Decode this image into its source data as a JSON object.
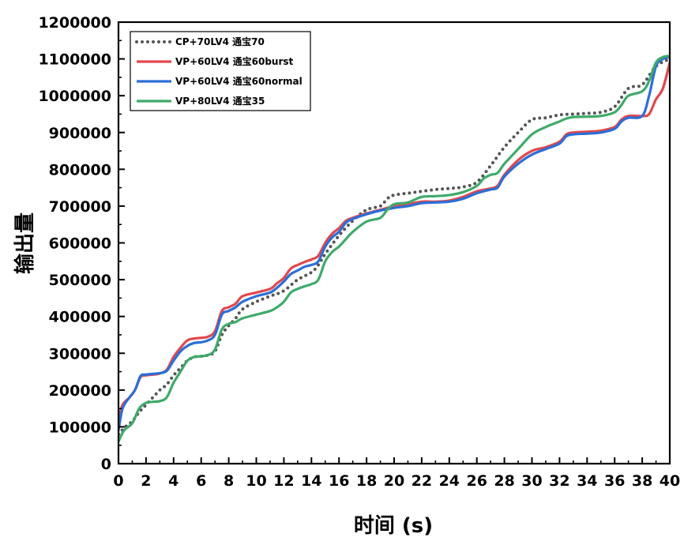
{
  "chart_data": {
    "type": "line",
    "title": "",
    "xlabel": "时间 (s)",
    "ylabel": "输出量",
    "xlim": [
      0,
      40
    ],
    "ylim": [
      0,
      1200000
    ],
    "x_ticks": [
      "0",
      "2",
      "4",
      "6",
      "8",
      "10",
      "12",
      "14",
      "16",
      "18",
      "20",
      "22",
      "24",
      "26",
      "28",
      "30",
      "32",
      "34",
      "36",
      "38",
      "40"
    ],
    "y_ticks": [
      "0",
      "100000",
      "200000",
      "300000",
      "400000",
      "500000",
      "600000",
      "700000",
      "800000",
      "900000",
      "1000000",
      "1100000",
      "1200000"
    ],
    "grid": false,
    "legend_position": "top-left",
    "series": [
      {
        "name": "CP+70LV4 通宝70",
        "color": "#555555",
        "style": "dotted",
        "points": [
          [
            0,
            80000
          ],
          [
            0.5,
            100000
          ],
          [
            1,
            115000
          ],
          [
            1.5,
            140000
          ],
          [
            2,
            160000
          ],
          [
            2.5,
            180000
          ],
          [
            3,
            200000
          ],
          [
            3.5,
            215000
          ],
          [
            4,
            240000
          ],
          [
            4.5,
            260000
          ],
          [
            5,
            280000
          ],
          [
            5.5,
            290000
          ],
          [
            6,
            292000
          ],
          [
            6.5,
            295000
          ],
          [
            7,
            305000
          ],
          [
            7.5,
            350000
          ],
          [
            8,
            375000
          ],
          [
            8.5,
            395000
          ],
          [
            9,
            420000
          ],
          [
            10,
            440000
          ],
          [
            11,
            455000
          ],
          [
            12,
            470000
          ],
          [
            13,
            500000
          ],
          [
            14,
            520000
          ],
          [
            14.5,
            540000
          ],
          [
            15,
            570000
          ],
          [
            16,
            620000
          ],
          [
            17,
            660000
          ],
          [
            18,
            690000
          ],
          [
            19,
            700000
          ],
          [
            19.5,
            720000
          ],
          [
            20,
            730000
          ],
          [
            21,
            735000
          ],
          [
            22,
            740000
          ],
          [
            23,
            745000
          ],
          [
            24,
            748000
          ],
          [
            25,
            752000
          ],
          [
            26,
            765000
          ],
          [
            27,
            810000
          ],
          [
            28,
            860000
          ],
          [
            29,
            900000
          ],
          [
            30,
            935000
          ],
          [
            31,
            940000
          ],
          [
            32,
            948000
          ],
          [
            33,
            950000
          ],
          [
            34,
            952000
          ],
          [
            35,
            955000
          ],
          [
            36,
            970000
          ],
          [
            37,
            1020000
          ],
          [
            38,
            1030000
          ],
          [
            39,
            1080000
          ],
          [
            40,
            1100000
          ]
        ]
      },
      {
        "name": "VP+60LV4 通宝60burst",
        "color": "#e2474c",
        "style": "solid",
        "points": [
          [
            0,
            120000
          ],
          [
            0.3,
            160000
          ],
          [
            0.8,
            180000
          ],
          [
            1.2,
            200000
          ],
          [
            1.6,
            235000
          ],
          [
            2,
            240000
          ],
          [
            2.5,
            242000
          ],
          [
            3,
            245000
          ],
          [
            3.5,
            255000
          ],
          [
            4,
            290000
          ],
          [
            4.5,
            315000
          ],
          [
            5,
            335000
          ],
          [
            5.5,
            340000
          ],
          [
            6,
            342000
          ],
          [
            6.5,
            345000
          ],
          [
            7,
            360000
          ],
          [
            7.5,
            415000
          ],
          [
            8,
            425000
          ],
          [
            8.5,
            435000
          ],
          [
            9,
            455000
          ],
          [
            10,
            465000
          ],
          [
            11,
            475000
          ],
          [
            11.5,
            490000
          ],
          [
            12,
            505000
          ],
          [
            12.5,
            530000
          ],
          [
            13,
            540000
          ],
          [
            13.5,
            548000
          ],
          [
            14,
            555000
          ],
          [
            14.5,
            565000
          ],
          [
            15,
            600000
          ],
          [
            15.5,
            625000
          ],
          [
            16,
            640000
          ],
          [
            16.5,
            660000
          ],
          [
            17,
            668000
          ],
          [
            18,
            680000
          ],
          [
            19,
            690000
          ],
          [
            20,
            700000
          ],
          [
            21,
            705000
          ],
          [
            22,
            712000
          ],
          [
            23,
            712000
          ],
          [
            24,
            715000
          ],
          [
            25,
            725000
          ],
          [
            26,
            740000
          ],
          [
            27,
            748000
          ],
          [
            27.5,
            755000
          ],
          [
            28,
            785000
          ],
          [
            29,
            825000
          ],
          [
            30,
            850000
          ],
          [
            31,
            860000
          ],
          [
            32,
            875000
          ],
          [
            32.5,
            895000
          ],
          [
            33,
            900000
          ],
          [
            34,
            902000
          ],
          [
            35,
            905000
          ],
          [
            36,
            915000
          ],
          [
            36.5,
            935000
          ],
          [
            37,
            945000
          ],
          [
            38,
            945000
          ],
          [
            38.5,
            950000
          ],
          [
            39,
            990000
          ],
          [
            39.5,
            1020000
          ],
          [
            40,
            1090000
          ]
        ]
      },
      {
        "name": "VP+60LV4 通宝60normal",
        "color": "#2b6fd6",
        "style": "solid",
        "points": [
          [
            0,
            90000
          ],
          [
            0.3,
            150000
          ],
          [
            0.8,
            180000
          ],
          [
            1.2,
            200000
          ],
          [
            1.6,
            238000
          ],
          [
            2,
            242000
          ],
          [
            2.5,
            244000
          ],
          [
            3,
            246000
          ],
          [
            3.5,
            252000
          ],
          [
            4,
            280000
          ],
          [
            4.5,
            305000
          ],
          [
            5,
            320000
          ],
          [
            5.5,
            328000
          ],
          [
            6,
            330000
          ],
          [
            6.5,
            335000
          ],
          [
            7,
            350000
          ],
          [
            7.5,
            405000
          ],
          [
            8,
            415000
          ],
          [
            8.5,
            425000
          ],
          [
            9,
            440000
          ],
          [
            10,
            455000
          ],
          [
            11,
            465000
          ],
          [
            11.5,
            478000
          ],
          [
            12,
            495000
          ],
          [
            12.5,
            515000
          ],
          [
            13,
            525000
          ],
          [
            13.5,
            535000
          ],
          [
            14,
            540000
          ],
          [
            14.5,
            550000
          ],
          [
            15,
            590000
          ],
          [
            15.5,
            615000
          ],
          [
            16,
            630000
          ],
          [
            16.5,
            655000
          ],
          [
            17,
            665000
          ],
          [
            18,
            678000
          ],
          [
            19,
            688000
          ],
          [
            20,
            695000
          ],
          [
            21,
            700000
          ],
          [
            22,
            708000
          ],
          [
            23,
            710000
          ],
          [
            24,
            712000
          ],
          [
            25,
            720000
          ],
          [
            26,
            735000
          ],
          [
            27,
            745000
          ],
          [
            27.5,
            750000
          ],
          [
            28,
            780000
          ],
          [
            29,
            815000
          ],
          [
            30,
            840000
          ],
          [
            31,
            855000
          ],
          [
            32,
            870000
          ],
          [
            32.5,
            890000
          ],
          [
            33,
            895000
          ],
          [
            34,
            897000
          ],
          [
            35,
            900000
          ],
          [
            36,
            910000
          ],
          [
            36.5,
            930000
          ],
          [
            37,
            940000
          ],
          [
            38,
            945000
          ],
          [
            38.5,
            1000000
          ],
          [
            39,
            1080000
          ],
          [
            39.5,
            1100000
          ],
          [
            40,
            1105000
          ]
        ]
      },
      {
        "name": "VP+80LV4 通宝35",
        "color": "#3faa6a",
        "style": "solid",
        "points": [
          [
            0,
            60000
          ],
          [
            0.4,
            90000
          ],
          [
            1,
            110000
          ],
          [
            1.5,
            150000
          ],
          [
            2,
            165000
          ],
          [
            2.5,
            168000
          ],
          [
            3,
            170000
          ],
          [
            3.5,
            180000
          ],
          [
            4,
            220000
          ],
          [
            4.5,
            250000
          ],
          [
            5,
            280000
          ],
          [
            5.5,
            290000
          ],
          [
            6,
            292000
          ],
          [
            6.5,
            295000
          ],
          [
            7,
            310000
          ],
          [
            7.5,
            365000
          ],
          [
            8,
            380000
          ],
          [
            8.5,
            385000
          ],
          [
            9,
            395000
          ],
          [
            10,
            405000
          ],
          [
            11,
            415000
          ],
          [
            11.5,
            425000
          ],
          [
            12,
            440000
          ],
          [
            12.5,
            465000
          ],
          [
            13,
            475000
          ],
          [
            13.5,
            482000
          ],
          [
            14,
            488000
          ],
          [
            14.5,
            500000
          ],
          [
            15,
            550000
          ],
          [
            15.5,
            575000
          ],
          [
            16,
            590000
          ],
          [
            16.5,
            610000
          ],
          [
            17,
            630000
          ],
          [
            18,
            658000
          ],
          [
            19,
            668000
          ],
          [
            19.5,
            690000
          ],
          [
            20,
            705000
          ],
          [
            21,
            710000
          ],
          [
            22,
            725000
          ],
          [
            23,
            727000
          ],
          [
            24,
            730000
          ],
          [
            25,
            738000
          ],
          [
            26,
            755000
          ],
          [
            26.5,
            775000
          ],
          [
            27,
            785000
          ],
          [
            27.5,
            790000
          ],
          [
            28,
            815000
          ],
          [
            29,
            855000
          ],
          [
            30,
            895000
          ],
          [
            31,
            915000
          ],
          [
            32,
            930000
          ],
          [
            32.5,
            938000
          ],
          [
            33,
            942000
          ],
          [
            34,
            943000
          ],
          [
            35,
            945000
          ],
          [
            36,
            955000
          ],
          [
            36.5,
            975000
          ],
          [
            37,
            1000000
          ],
          [
            38,
            1012000
          ],
          [
            38.5,
            1040000
          ],
          [
            39,
            1090000
          ],
          [
            39.5,
            1105000
          ],
          [
            40,
            1108000
          ]
        ]
      }
    ]
  }
}
